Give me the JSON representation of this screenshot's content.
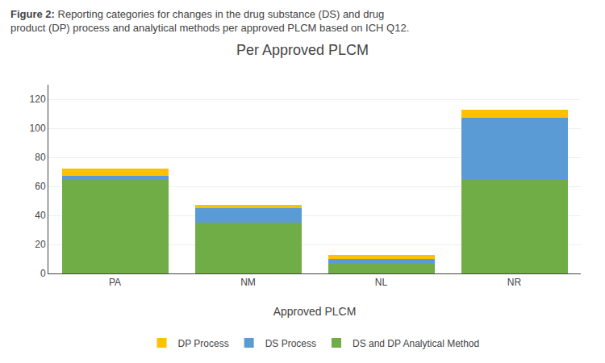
{
  "chart_data": {
    "type": "bar",
    "title": "Per Approved PLCM",
    "annotations": [
      "Figure 2:",
      "Reporting categories for changes in the drug substance (DS) and drug\nproduct (DP) process and analytical methods per approved PLCM based on ICH Q12."
    ],
    "xlabel": "Approved PLCM",
    "categories": [
      "PA",
      "NM",
      "NL",
      "NR"
    ],
    "series": [
      {
        "name": "DS and DP Analytical Method",
        "color": "#70ad47",
        "values": [
          65,
          35,
          7,
          65
        ]
      },
      {
        "name": "DS Process",
        "color": "#5b9bd5",
        "values": [
          2,
          10,
          3,
          42
        ]
      },
      {
        "name": "DP Process",
        "color": "#ffc000",
        "values": [
          5,
          2,
          3,
          6
        ]
      }
    ],
    "stacked": true,
    "ylim": [
      0,
      130
    ],
    "yticks": [
      0,
      20,
      40,
      60,
      80,
      100,
      120
    ],
    "grid": true,
    "legend": "bottom"
  }
}
